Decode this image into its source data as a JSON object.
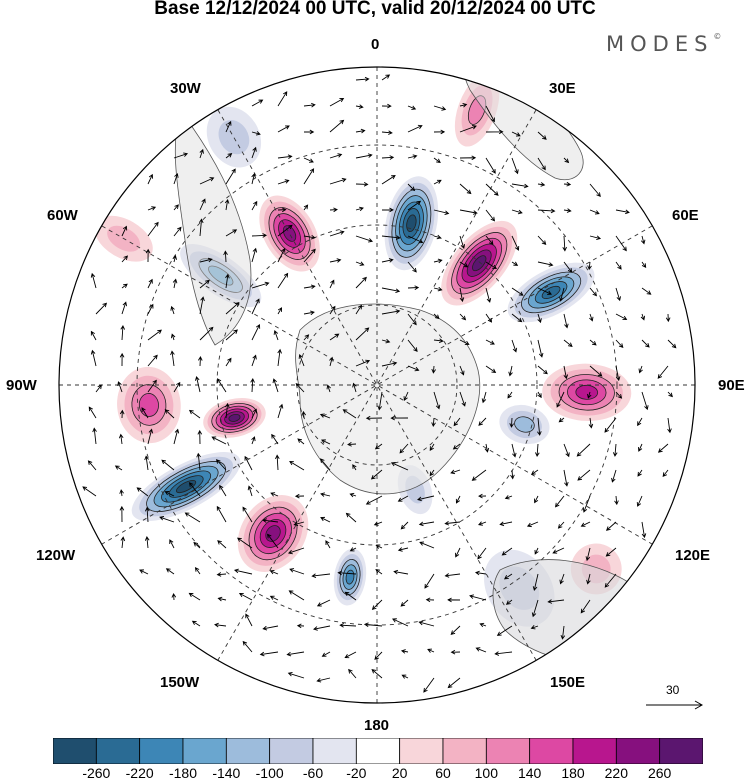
{
  "title": "Base 12/12/2024 00 UTC, valid 20/12/2024 00 UTC",
  "logo": "MODES",
  "longitude_labels": {
    "top": "0",
    "lon_30w": "30W",
    "lon_30e": "30E",
    "lon_60w": "60W",
    "lon_60e": "60E",
    "lon_90w": "90W",
    "lon_90e": "90E",
    "lon_120w": "120W",
    "lon_120e": "120E",
    "lon_150w": "150W",
    "lon_150e": "150E",
    "bottom": "180"
  },
  "reference_vector": {
    "label": "30"
  },
  "colorbar": {
    "ticks": [
      "-260",
      "-220",
      "-180",
      "-140",
      "-100",
      "-60",
      "-20",
      "20",
      "60",
      "100",
      "140",
      "180",
      "220",
      "260"
    ],
    "colors": [
      "#1f4e6e",
      "#2a6b94",
      "#3d86b6",
      "#6aa6cf",
      "#9dbcdc",
      "#c3cbe2",
      "#e3e5f0",
      "#ffffff",
      "#f8d6da",
      "#f3b3c4",
      "#ec83b3",
      "#dd48a3",
      "#b8168e",
      "#86107e",
      "#5b166f"
    ]
  },
  "anomalies": [
    {
      "kind": "neg",
      "lon": 12,
      "colat": 0.52,
      "a": 0.15,
      "b": 0.08,
      "level": 6
    },
    {
      "kind": "pos",
      "lon": 40,
      "colat": 0.5,
      "a": 0.16,
      "b": 0.08,
      "level": 6
    },
    {
      "kind": "pos",
      "lon": -30,
      "colat": 0.55,
      "a": 0.13,
      "b": 0.08,
      "level": 5
    },
    {
      "kind": "neg",
      "lon": 62,
      "colat": 0.62,
      "a": 0.15,
      "b": 0.07,
      "level": 5
    },
    {
      "kind": "neg",
      "lon": -55,
      "colat": 0.6,
      "a": 0.15,
      "b": 0.06,
      "level": 3
    },
    {
      "kind": "pos",
      "lon": -95,
      "colat": 0.72,
      "a": 0.1,
      "b": 0.12,
      "level": 3
    },
    {
      "kind": "pos",
      "lon": -103,
      "colat": 0.46,
      "a": 0.1,
      "b": 0.06,
      "level": 6
    },
    {
      "kind": "neg",
      "lon": -118,
      "colat": 0.68,
      "a": 0.19,
      "b": 0.07,
      "level": 6
    },
    {
      "kind": "pos",
      "lon": -145,
      "colat": 0.57,
      "a": 0.13,
      "b": 0.1,
      "level": 5
    },
    {
      "kind": "neg",
      "lon": -172,
      "colat": 0.61,
      "a": 0.09,
      "b": 0.05,
      "level": 4
    },
    {
      "kind": "pos",
      "lon": 92,
      "colat": 0.66,
      "a": 0.14,
      "b": 0.09,
      "level": 4
    },
    {
      "kind": "neg",
      "lon": 105,
      "colat": 0.48,
      "a": 0.08,
      "b": 0.06,
      "level": 2
    },
    {
      "kind": "pos",
      "lon": 130,
      "colat": 0.9,
      "a": 0.08,
      "b": 0.08,
      "level": 1
    },
    {
      "kind": "neg",
      "lon": 145,
      "colat": 0.78,
      "a": 0.13,
      "b": 0.1,
      "level": 1
    },
    {
      "kind": "neg",
      "lon": -30,
      "colat": 0.9,
      "a": 0.1,
      "b": 0.08,
      "level": 1
    },
    {
      "kind": "pos",
      "lon": 20,
      "colat": 0.92,
      "a": 0.12,
      "b": 0.06,
      "level": 2
    },
    {
      "kind": "neg",
      "lon": 160,
      "colat": 0.35,
      "a": 0.08,
      "b": 0.05,
      "level": 1
    },
    {
      "kind": "pos",
      "lon": -60,
      "colat": 0.92,
      "a": 0.1,
      "b": 0.06,
      "level": 1
    }
  ]
}
